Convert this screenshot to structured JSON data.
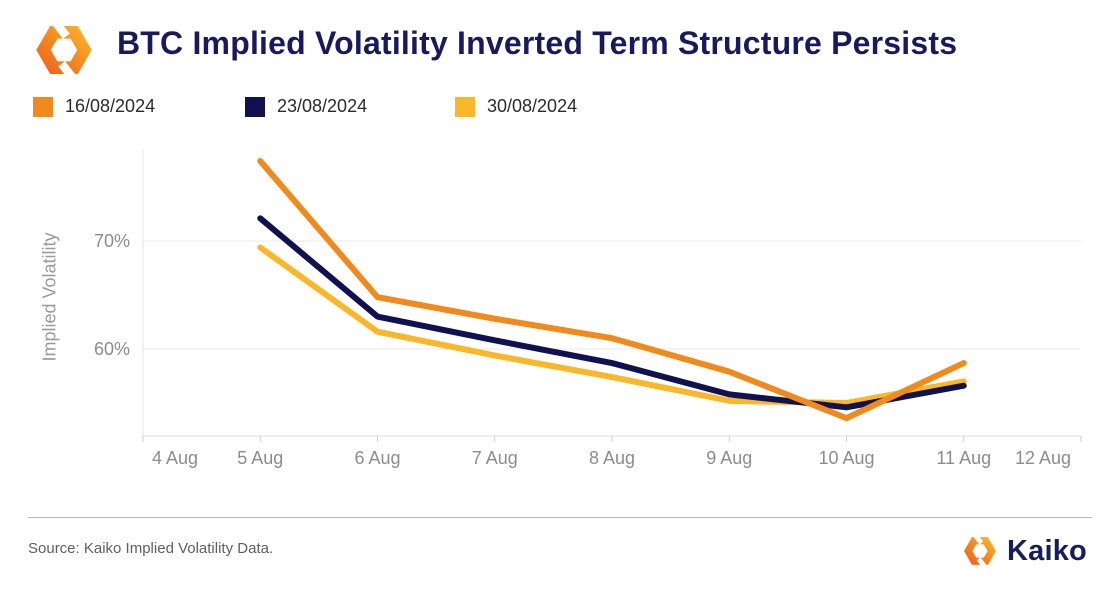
{
  "header": {
    "title": "BTC Implied Volatility Inverted Term Structure Persists"
  },
  "legend": {
    "items": [
      {
        "label": "16/08/2024",
        "color": "#F08A1D"
      },
      {
        "label": "23/08/2024",
        "color": "#101150"
      },
      {
        "label": "30/08/2024",
        "color": "#FBB72A"
      }
    ]
  },
  "chart_data": {
    "type": "line",
    "title": "BTC Implied Volatility Inverted Term Structure Persists",
    "xlabel": "",
    "ylabel": "Implied Volatility",
    "unit": "%",
    "grid": "horizontal",
    "legend_position": "top",
    "x_ticks": [
      "4 Aug",
      "5 Aug",
      "6 Aug",
      "7 Aug",
      "8 Aug",
      "9 Aug",
      "10 Aug",
      "11 Aug",
      "12 Aug"
    ],
    "y_ticks": [
      {
        "value": 70,
        "label": "70%"
      },
      {
        "value": 60,
        "label": "60%"
      }
    ],
    "ylim": [
      52,
      78.5
    ],
    "categories": [
      "5 Aug",
      "6 Aug",
      "7 Aug",
      "8 Aug",
      "9 Aug",
      "10 Aug",
      "11 Aug"
    ],
    "series": [
      {
        "name": "16/08/2024",
        "color": "#F08A1D",
        "values": [
          77.4,
          64.8,
          62.8,
          61.0,
          57.9,
          53.6,
          58.7
        ]
      },
      {
        "name": "23/08/2024",
        "color": "#101150",
        "values": [
          72.1,
          63.0,
          60.8,
          58.7,
          55.8,
          54.6,
          56.6
        ]
      },
      {
        "name": "30/08/2024",
        "color": "#FBB72A",
        "values": [
          69.4,
          61.6,
          59.4,
          57.4,
          55.2,
          55.0,
          57.0
        ]
      }
    ]
  },
  "footer": {
    "source": "Source: Kaiko Implied Volatility Data.",
    "brand": "Kaiko"
  }
}
